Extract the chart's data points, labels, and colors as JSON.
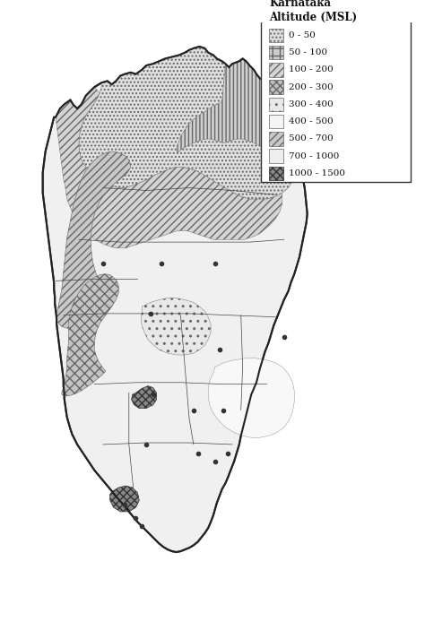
{
  "title": "Karnataka\nAltitude (MSL)",
  "legend_items": [
    {
      "label": "0 - 50",
      "hatch": "....",
      "facecolor": "#e8e8e8",
      "edgecolor": "#666666"
    },
    {
      "label": "50 - 100",
      "hatch": "++",
      "facecolor": "#cccccc",
      "edgecolor": "#666666"
    },
    {
      "label": "100 - 200",
      "hatch": "////",
      "facecolor": "#d0d0d0",
      "edgecolor": "#666666"
    },
    {
      "label": "200 - 300",
      "hatch": "xxxx",
      "facecolor": "#c0c0c0",
      "edgecolor": "#666666"
    },
    {
      "label": "300 - 400",
      "hatch": "..",
      "facecolor": "#f0f0f0",
      "edgecolor": "#666666"
    },
    {
      "label": "400 - 500",
      "hatch": "",
      "facecolor": "#f5f5f5",
      "edgecolor": "#666666"
    },
    {
      "label": "500 - 700",
      "hatch": "////",
      "facecolor": "#d8d8d8",
      "edgecolor": "#666666"
    },
    {
      "label": "700 - 1000",
      "hatch": "",
      "facecolor": "#efefef",
      "edgecolor": "#666666"
    },
    {
      "label": "1000 - 1500",
      "hatch": "XXXX",
      "facecolor": "#999999",
      "edgecolor": "#333333"
    }
  ],
  "bg_color": "#ffffff",
  "figsize": [
    4.74,
    7.13
  ],
  "dpi": 100
}
